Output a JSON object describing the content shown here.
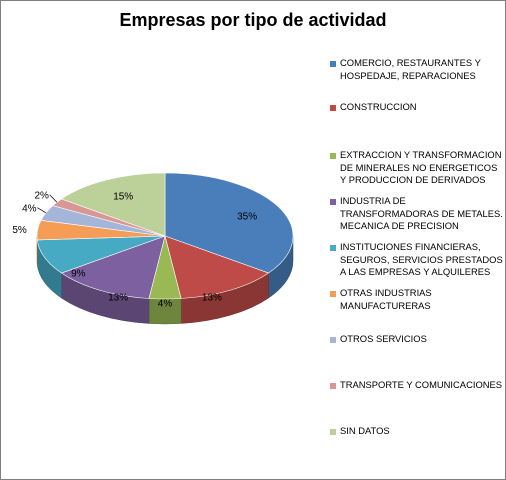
{
  "chart_data": {
    "type": "pie",
    "title": "Empresas por tipo de actividad",
    "categories": [
      "COMERCIO, RESTAURANTES Y HOSPEDAJE, REPARACIONES",
      "CONSTRUCCION",
      "EXTRACCION Y TRANSFORMACION DE MINERALES NO ENERGETICOS Y PRODUCCION DE DERIVADOS",
      "INDUSTRIA DE TRANSFORMADORAS DE METALES. MECANICA DE PRECISION",
      "INSTITUCIONES FINANCIERAS, SEGUROS, SERVICIOS PRESTADOS A LAS EMPRESAS Y ALQUILERES",
      "OTRAS INDUSTRIAS MANUFACTURERAS",
      "OTROS SERVICIOS",
      "TRANSPORTE Y COMUNICACIONES",
      "SIN DATOS"
    ],
    "values": [
      35,
      13,
      4,
      13,
      9,
      5,
      4,
      2,
      15
    ],
    "labels": [
      "35%",
      "13%",
      "4%",
      "13%",
      "9%",
      "5%",
      "4%",
      "2%",
      "15%"
    ],
    "colors": [
      "#4a7ebb",
      "#be4b48",
      "#98b954",
      "#7d60a0",
      "#46aac4",
      "#f59d56",
      "#a5b5d7",
      "#d89795",
      "#bcd09a"
    ],
    "legend_position": "right",
    "style": "3d"
  }
}
